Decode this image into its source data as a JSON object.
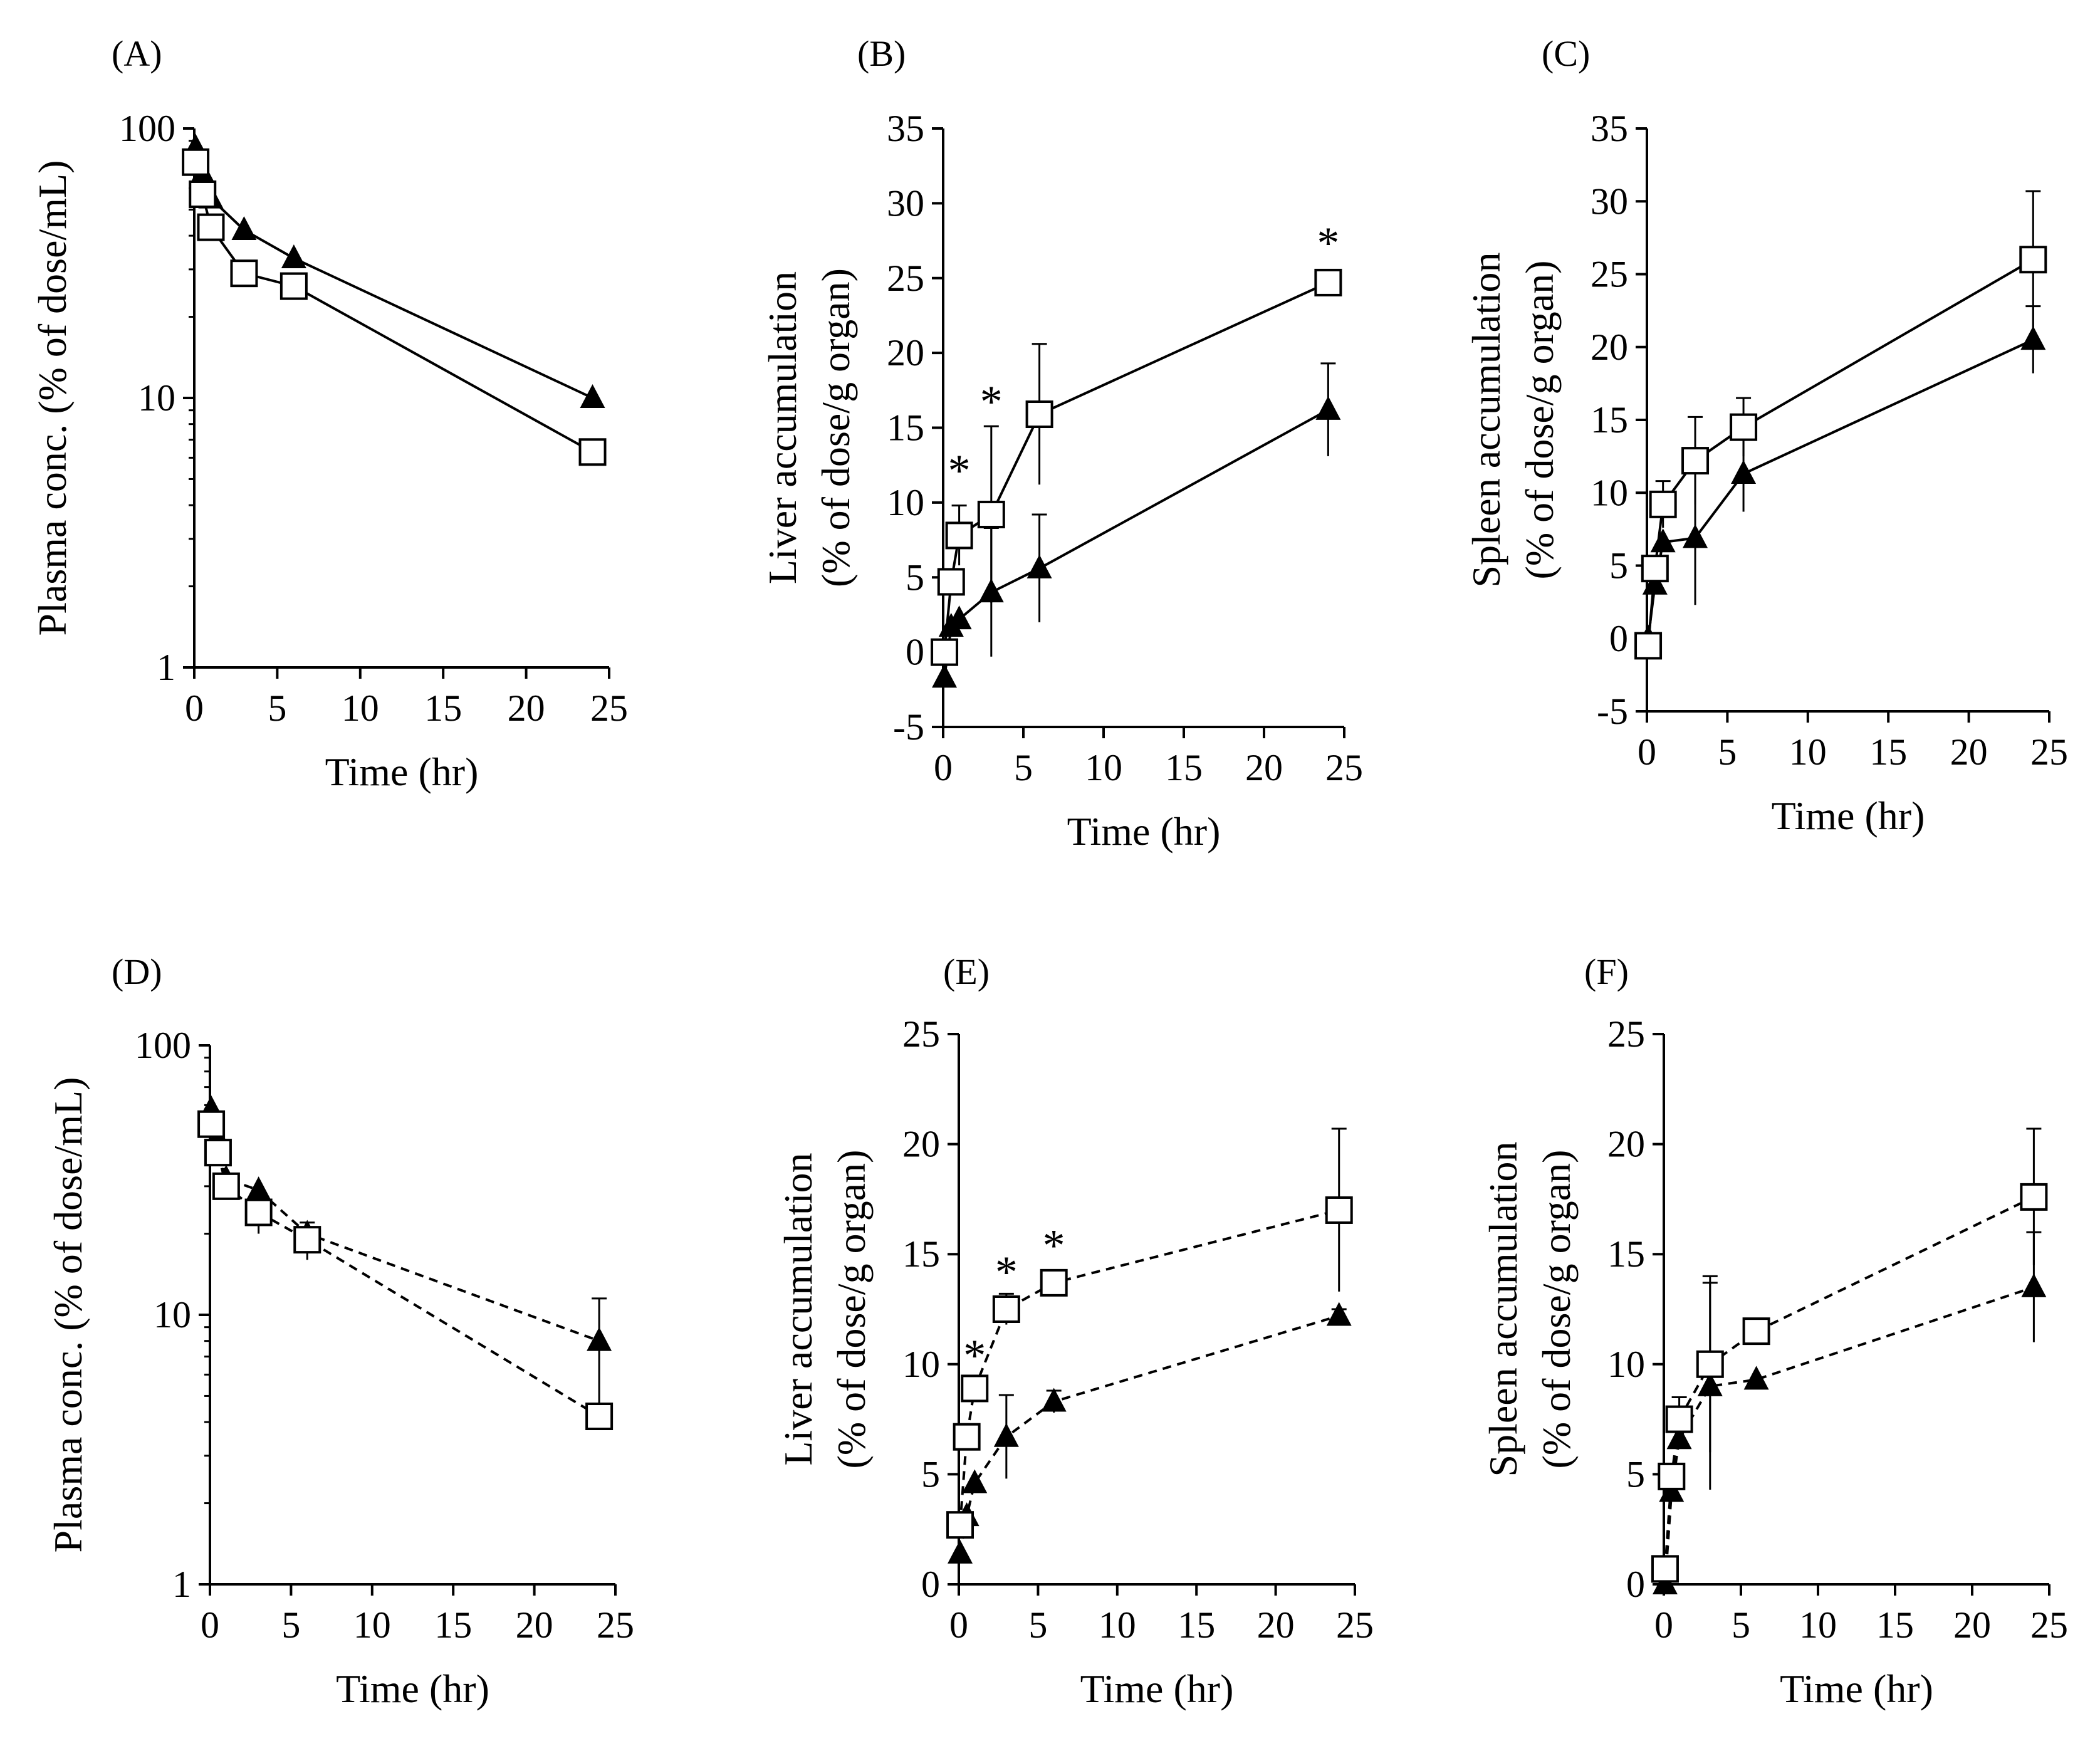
{
  "figure": {
    "caption": "",
    "marker_legend": {
      "open_square": "series 1 (□)",
      "filled_triangle": "series 2 (▲)"
    }
  },
  "chart_data": [
    {
      "panel": "(A)",
      "type": "line",
      "yscale": "log",
      "line_style": "solid",
      "xlabel": "Time (hr)",
      "ylabel": "Plasma conc. (% of dose/mL)",
      "xlim": [
        0,
        25
      ],
      "ylim": [
        1,
        100
      ],
      "xticks": [
        0,
        5,
        10,
        15,
        20,
        25
      ],
      "yticks": [
        1,
        10,
        100
      ],
      "ytick_labels": [
        "1",
        "10",
        "100"
      ],
      "series": [
        {
          "name": "open-square",
          "marker": "square",
          "x": [
            0.08,
            0.5,
            1,
            3,
            6,
            24
          ],
          "y": [
            75,
            57,
            43,
            29,
            26,
            6.3
          ],
          "err": [
            0,
            0,
            0,
            0,
            0,
            0
          ]
        },
        {
          "name": "filled-triangle",
          "marker": "triangle",
          "x": [
            0.08,
            0.5,
            1,
            3,
            6,
            24
          ],
          "y": [
            85,
            68,
            55,
            42,
            33,
            10
          ],
          "err": [
            0,
            0,
            0,
            0,
            0,
            0
          ]
        }
      ],
      "annotations": []
    },
    {
      "panel": "(B)",
      "type": "line",
      "yscale": "linear",
      "line_style": "solid",
      "xlabel": "Time (hr)",
      "ylabel": [
        "Liver accumulation",
        "(% of dose/g organ)"
      ],
      "xlim": [
        0,
        25
      ],
      "ylim": [
        -5,
        35
      ],
      "xticks": [
        0,
        5,
        10,
        15,
        20,
        25
      ],
      "yticks": [
        -5,
        0,
        5,
        10,
        15,
        20,
        25,
        30,
        35
      ],
      "ytick_labels": [
        "-5",
        "0",
        "5",
        "10",
        "15",
        "20",
        "25",
        "30",
        "35"
      ],
      "series": [
        {
          "name": "open-square",
          "marker": "square",
          "x": [
            0.08,
            0.5,
            1,
            3,
            6,
            24
          ],
          "y": [
            0,
            4.7,
            7.8,
            9.2,
            15.9,
            24.7
          ],
          "err": [
            0,
            0,
            2.0,
            5.9,
            4.7,
            0
          ]
        },
        {
          "name": "filled-triangle",
          "marker": "triangle",
          "x": [
            0.08,
            0.5,
            1,
            3,
            6,
            24
          ],
          "y": [
            -1.7,
            1.7,
            2.2,
            4.0,
            5.6,
            16.2
          ],
          "err": [
            0,
            0,
            0,
            4.3,
            3.6,
            3.1
          ]
        }
      ],
      "annotations": [
        {
          "text": "*",
          "x": 1,
          "y": 12.3
        },
        {
          "text": "*",
          "x": 3,
          "y": 16.9
        },
        {
          "text": "*",
          "x": 24,
          "y": 27.5
        }
      ]
    },
    {
      "panel": "(C)",
      "type": "line",
      "yscale": "linear",
      "line_style": "solid",
      "xlabel": "Time (hr)",
      "ylabel": [
        "Spleen accumulation",
        "(% of dose/g organ)"
      ],
      "xlim": [
        0,
        25
      ],
      "ylim": [
        -5,
        35
      ],
      "xticks": [
        0,
        5,
        10,
        15,
        20,
        25
      ],
      "yticks": [
        -5,
        0,
        5,
        10,
        15,
        20,
        25,
        30,
        35
      ],
      "ytick_labels": [
        "-5",
        "0",
        "5",
        "10",
        "15",
        "20",
        "25",
        "30",
        "35"
      ],
      "series": [
        {
          "name": "open-square",
          "marker": "square",
          "x": [
            0.08,
            0.5,
            1,
            3,
            6,
            24
          ],
          "y": [
            -0.5,
            4.8,
            9.2,
            12.2,
            14.5,
            26.0
          ],
          "err": [
            0,
            0,
            1.6,
            3.0,
            2.0,
            4.7
          ]
        },
        {
          "name": "filled-triangle",
          "marker": "triangle",
          "x": [
            0.08,
            0.5,
            1,
            3,
            6,
            24
          ],
          "y": [
            0,
            3.7,
            6.6,
            6.9,
            11.3,
            20.5
          ],
          "err": [
            0,
            0,
            0,
            4.6,
            2.6,
            2.3
          ]
        }
      ],
      "annotations": []
    },
    {
      "panel": "(D)",
      "type": "line",
      "yscale": "log",
      "line_style": "dashed",
      "xlabel": "Time (hr)",
      "ylabel": "Plasma conc. (% of dose/mL)",
      "xlim": [
        0,
        25
      ],
      "ylim": [
        1,
        100
      ],
      "xticks": [
        0,
        5,
        10,
        15,
        20,
        25
      ],
      "yticks": [
        1,
        10,
        100
      ],
      "ytick_labels": [
        "1",
        "10",
        "100"
      ],
      "series": [
        {
          "name": "open-square",
          "marker": "square",
          "x": [
            0.08,
            0.5,
            1,
            3,
            6,
            24
          ],
          "y": [
            51,
            40,
            30,
            24,
            19,
            4.2
          ],
          "err": [
            0,
            0,
            0,
            4,
            3,
            0
          ]
        },
        {
          "name": "filled-triangle",
          "marker": "triangle",
          "x": [
            0.08,
            0.5,
            1,
            3,
            6,
            24
          ],
          "y": [
            58,
            45,
            32,
            29,
            20,
            8
          ],
          "err": [
            0,
            0,
            0,
            0,
            0,
            3.5
          ]
        }
      ],
      "annotations": []
    },
    {
      "panel": "(E)",
      "type": "line",
      "yscale": "linear",
      "line_style": "dashed",
      "xlabel": "Time (hr)",
      "ylabel": [
        "Liver accumulation",
        "(% of dose/g organ)"
      ],
      "xlim": [
        0,
        25
      ],
      "ylim": [
        0,
        25
      ],
      "xticks": [
        0,
        5,
        10,
        15,
        20,
        25
      ],
      "yticks": [
        0,
        5,
        10,
        15,
        20,
        25
      ],
      "ytick_labels": [
        "0",
        "5",
        "10",
        "15",
        "20",
        "25"
      ],
      "series": [
        {
          "name": "open-square",
          "marker": "square",
          "x": [
            0.08,
            0.5,
            1,
            3,
            6,
            24
          ],
          "y": [
            2.7,
            6.7,
            8.9,
            12.5,
            13.7,
            17.0
          ],
          "err": [
            0,
            0,
            0,
            0.7,
            0.4,
            3.7
          ]
        },
        {
          "name": "filled-triangle",
          "marker": "triangle",
          "x": [
            0.08,
            0.5,
            1,
            3,
            6,
            24
          ],
          "y": [
            1.4,
            3.1,
            4.6,
            6.7,
            8.3,
            12.2
          ],
          "err": [
            0,
            0,
            0,
            1.9,
            0.5,
            0.3
          ]
        }
      ],
      "annotations": [
        {
          "text": "*",
          "x": 1,
          "y": 10.5
        },
        {
          "text": "*",
          "x": 3,
          "y": 14.3
        },
        {
          "text": "*",
          "x": 6,
          "y": 15.5
        }
      ]
    },
    {
      "panel": "(F)",
      "type": "line",
      "yscale": "linear",
      "line_style": "dashed",
      "xlabel": "Time (hr)",
      "ylabel": [
        "Spleen accumulation",
        "(% of dose/g organ)"
      ],
      "xlim": [
        0,
        25
      ],
      "ylim": [
        0,
        25
      ],
      "xticks": [
        0,
        5,
        10,
        15,
        20,
        25
      ],
      "yticks": [
        0,
        5,
        10,
        15,
        20,
        25
      ],
      "ytick_labels": [
        "0",
        "5",
        "10",
        "15",
        "20",
        "25"
      ],
      "series": [
        {
          "name": "open-square",
          "marker": "square",
          "x": [
            0.08,
            0.5,
            1,
            3,
            6,
            24
          ],
          "y": [
            0.7,
            4.9,
            7.5,
            10.0,
            11.5,
            17.6
          ],
          "err": [
            0,
            0,
            1.0,
            4.0,
            0,
            3.1
          ]
        },
        {
          "name": "filled-triangle",
          "marker": "triangle",
          "x": [
            0.08,
            0.5,
            1,
            3,
            6,
            24
          ],
          "y": [
            0,
            4.2,
            6.6,
            9.0,
            9.3,
            13.5
          ],
          "err": [
            0,
            0,
            0,
            4.7,
            0,
            2.5
          ]
        }
      ],
      "annotations": []
    }
  ]
}
